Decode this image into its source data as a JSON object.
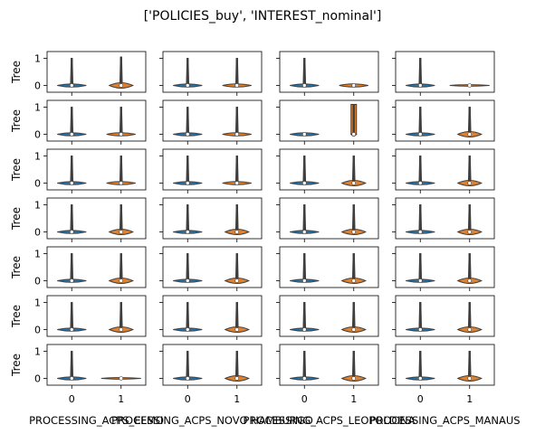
{
  "chart_data": {
    "type": "violin",
    "title": "['POLICIES_buy', 'INTEREST_nominal']",
    "ylabel": "Tree",
    "ylim": [
      -0.25,
      1.25
    ],
    "yticks": [
      0,
      1
    ],
    "xticks": [
      "0",
      "1"
    ],
    "grid": false,
    "legend": "none",
    "colors": {
      "violin_0": "#3274a1",
      "violin_1": "#e1812c",
      "edge": "#3f3f3f"
    },
    "column_labels": [
      "PROCESSING_ACPS_ELMO",
      "PROCESSING_ACPS_NOVO HAMBURGO",
      "PROCESSING_ACPS_LEOPOLDINA",
      "PROCESSING_ACPS_MANAUS"
    ],
    "panels": [
      [
        {
          "min": [
            0,
            0
          ],
          "max": [
            1,
            1.05
          ],
          "body1": "wide"
        },
        {
          "min": [
            0,
            0
          ],
          "max": [
            1,
            1
          ],
          "body1": "normal"
        },
        {
          "min": [
            0,
            0
          ],
          "max": [
            1,
            0
          ],
          "body1": "normal"
        },
        {
          "min": [
            0,
            0
          ],
          "max": [
            1,
            0
          ],
          "body1": "flat"
        }
      ],
      [
        {
          "min": [
            0,
            0
          ],
          "max": [
            1,
            1
          ],
          "body1": "normal"
        },
        {
          "min": [
            0,
            0
          ],
          "max": [
            1,
            1
          ],
          "body1": "normal"
        },
        {
          "min": [
            0,
            0
          ],
          "max": [
            0,
            1.1
          ],
          "body1": "spike"
        },
        {
          "min": [
            0,
            0
          ],
          "max": [
            1,
            1
          ],
          "body1": "wide"
        }
      ],
      [
        {
          "min": [
            0,
            0
          ],
          "max": [
            1,
            1
          ],
          "body1": "normal"
        },
        {
          "min": [
            0,
            0
          ],
          "max": [
            1,
            1
          ],
          "body1": "normal"
        },
        {
          "min": [
            0,
            0
          ],
          "max": [
            1,
            1
          ],
          "body1": "wide"
        },
        {
          "min": [
            0,
            0
          ],
          "max": [
            1,
            1
          ],
          "body1": "wide"
        }
      ],
      [
        {
          "min": [
            0,
            0
          ],
          "max": [
            1,
            1
          ],
          "body1": "wide"
        },
        {
          "min": [
            0,
            0
          ],
          "max": [
            1,
            1
          ],
          "body1": "wide"
        },
        {
          "min": [
            0,
            0
          ],
          "max": [
            1,
            1
          ],
          "body1": "wide"
        },
        {
          "min": [
            0,
            0
          ],
          "max": [
            1,
            1
          ],
          "body1": "wide"
        }
      ],
      [
        {
          "min": [
            0,
            0
          ],
          "max": [
            1,
            1
          ],
          "body1": "wide"
        },
        {
          "min": [
            0,
            0
          ],
          "max": [
            1,
            1
          ],
          "body1": "wide"
        },
        {
          "min": [
            0,
            0
          ],
          "max": [
            1,
            1
          ],
          "body1": "wide"
        },
        {
          "min": [
            0,
            0
          ],
          "max": [
            1,
            1
          ],
          "body1": "wide"
        }
      ],
      [
        {
          "min": [
            0,
            0
          ],
          "max": [
            1,
            1
          ],
          "body1": "wide"
        },
        {
          "min": [
            0,
            0
          ],
          "max": [
            1,
            1
          ],
          "body1": "wide"
        },
        {
          "min": [
            0,
            0
          ],
          "max": [
            1,
            1
          ],
          "body1": "wide"
        },
        {
          "min": [
            0,
            0
          ],
          "max": [
            1,
            1
          ],
          "body1": "wide"
        }
      ],
      [
        {
          "min": [
            0,
            0
          ],
          "max": [
            1,
            0
          ],
          "body1": "flat"
        },
        {
          "min": [
            0,
            0
          ],
          "max": [
            1,
            1
          ],
          "body1": "wide"
        },
        {
          "min": [
            0,
            0
          ],
          "max": [
            1,
            1
          ],
          "body1": "wide"
        },
        {
          "min": [
            0,
            0
          ],
          "max": [
            1,
            1
          ],
          "body1": "wide"
        }
      ]
    ]
  }
}
